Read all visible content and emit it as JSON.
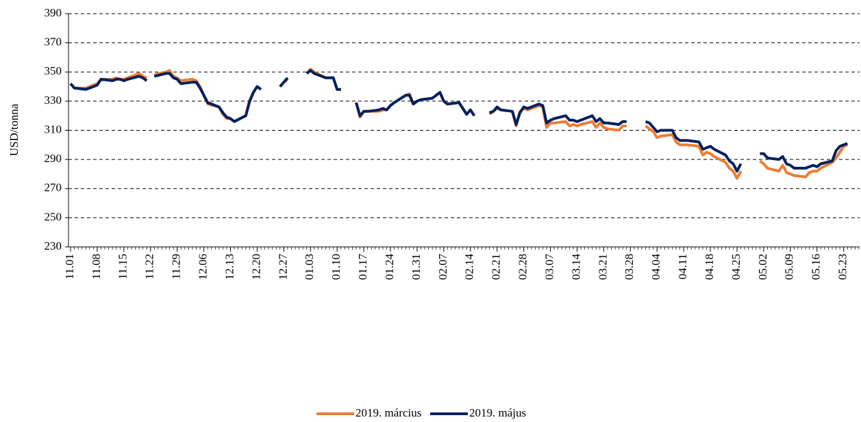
{
  "chart_data": {
    "type": "line",
    "y_label": "USD/tonna",
    "x": [
      "11.01",
      "11.02",
      "11.05",
      "11.06",
      "11.07",
      "11.08",
      "11.09",
      "11.12",
      "11.13",
      "11.14",
      "11.15",
      "11.16",
      "11.19",
      "11.20",
      "11.21",
      "11.22",
      "11.23",
      "11.26",
      "11.27",
      "11.28",
      "11.29",
      "11.30",
      "12.03",
      "12.04",
      "12.05",
      "12.06",
      "12.07",
      "12.10",
      "12.11",
      "12.12",
      "12.13",
      "12.14",
      "12.17",
      "12.18",
      "12.19",
      "12.20",
      "12.21",
      "12.24",
      "12.26",
      "12.27",
      "12.28",
      "12.31",
      "01.02",
      "01.03",
      "01.04",
      "01.07",
      "01.08",
      "01.09",
      "01.10",
      "01.11",
      "01.14",
      "01.15",
      "01.16",
      "01.17",
      "01.18",
      "01.21",
      "01.22",
      "01.23",
      "01.24",
      "01.25",
      "01.28",
      "01.29",
      "01.30",
      "01.31",
      "02.01",
      "02.04",
      "02.05",
      "02.06",
      "02.07",
      "02.08",
      "02.11",
      "02.12",
      "02.13",
      "02.14",
      "02.15",
      "02.18",
      "02.19",
      "02.20",
      "02.21",
      "02.22",
      "02.25",
      "02.26",
      "02.27",
      "02.28",
      "03.01",
      "03.04",
      "03.05",
      "03.06",
      "03.07",
      "03.08",
      "03.11",
      "03.12",
      "03.13",
      "03.14",
      "03.15",
      "03.18",
      "03.19",
      "03.20",
      "03.21",
      "03.22",
      "03.25",
      "03.26",
      "03.27",
      "03.28",
      "04.01",
      "04.02",
      "04.03",
      "04.04",
      "04.05",
      "04.08",
      "04.09",
      "04.10",
      "04.11",
      "04.12",
      "04.15",
      "04.16",
      "04.17",
      "04.18",
      "04.19",
      "04.22",
      "04.23",
      "04.24",
      "04.25",
      "04.26",
      "04.29",
      "05.01",
      "05.02",
      "05.03",
      "05.06",
      "05.07",
      "05.08",
      "05.09",
      "05.10",
      "05.13",
      "05.14",
      "05.15",
      "05.16",
      "05.17",
      "05.20",
      "05.21",
      "05.22",
      "05.23",
      "05.24"
    ],
    "series": [
      {
        "name": "2019. március",
        "color": "#ed7d31",
        "values": [
          342,
          339,
          339,
          340,
          341,
          342,
          345,
          345,
          346,
          345,
          345,
          346,
          349,
          347,
          346,
          null,
          348,
          350,
          351,
          347,
          346,
          344,
          345,
          344,
          340,
          334,
          328,
          326,
          321,
          318,
          318,
          316,
          320,
          329,
          336,
          340,
          338,
          null,
          340,
          343,
          345,
          null,
          349,
          352,
          350,
          346,
          346,
          346,
          338,
          338,
          null,
          329,
          319,
          323,
          323,
          323,
          324,
          324,
          327,
          329,
          334,
          335,
          328,
          330,
          331,
          332,
          334,
          336,
          330,
          328,
          329,
          325,
          321,
          324,
          320,
          null,
          321,
          323,
          325,
          324,
          323,
          313,
          323,
          325,
          324,
          327,
          326,
          312,
          315,
          315,
          316,
          313,
          314,
          313,
          314,
          316,
          312,
          315,
          312,
          311,
          310,
          313,
          313,
          null,
          313,
          311,
          309,
          305,
          306,
          307,
          302,
          300,
          300,
          300,
          299,
          293,
          295,
          294,
          292,
          288,
          284,
          282,
          277,
          282,
          null,
          289,
          287,
          284,
          282,
          286,
          281,
          280,
          279,
          278,
          281,
          282,
          282,
          284,
          288,
          291,
          295,
          299,
          300
        ]
      },
      {
        "name": "2019. május",
        "color": "#002060",
        "values": [
          342,
          339,
          338,
          339,
          340,
          341,
          345,
          344,
          345,
          345,
          344,
          345,
          347,
          346,
          344,
          null,
          347,
          349,
          349,
          346,
          345,
          342,
          343,
          343,
          339,
          334,
          329,
          326,
          322,
          319,
          318,
          316,
          320,
          330,
          336,
          340,
          338,
          null,
          340,
          343,
          346,
          null,
          349,
          351,
          349,
          346,
          346,
          346,
          338,
          338,
          null,
          329,
          320,
          323,
          323,
          324,
          325,
          324,
          327,
          329,
          334,
          334,
          328,
          330,
          331,
          332,
          334,
          336,
          330,
          328,
          329,
          325,
          321,
          324,
          320,
          null,
          322,
          323,
          326,
          324,
          323,
          314,
          322,
          326,
          325,
          328,
          327,
          315,
          317,
          318,
          320,
          317,
          317,
          316,
          317,
          320,
          316,
          318,
          315,
          315,
          314,
          316,
          316,
          null,
          316,
          315,
          312,
          309,
          310,
          310,
          305,
          303,
          303,
          303,
          302,
          297,
          298,
          299,
          297,
          293,
          289,
          287,
          282,
          287,
          null,
          294,
          294,
          291,
          290,
          292,
          287,
          286,
          284,
          284,
          285,
          286,
          285,
          287,
          289,
          296,
          299,
          300,
          301
        ]
      }
    ],
    "ylim": [
      230,
      390
    ],
    "yticks": [
      230,
      250,
      270,
      290,
      310,
      330,
      350,
      370,
      390
    ],
    "xticks": [
      "11.01",
      "11.08",
      "11.15",
      "11.22",
      "11.29",
      "12.06",
      "12.13",
      "12.20",
      "12.27",
      "01.03",
      "01.10",
      "01.17",
      "01.24",
      "01.31",
      "02.07",
      "02.14",
      "02.21",
      "02.28",
      "03.07",
      "03.14",
      "03.21",
      "03.28",
      "04.04",
      "04.11",
      "04.18",
      "04.25",
      "05.02",
      "05.09",
      "05.16",
      "05.23"
    ],
    "grid": true,
    "legend": "bottom"
  }
}
